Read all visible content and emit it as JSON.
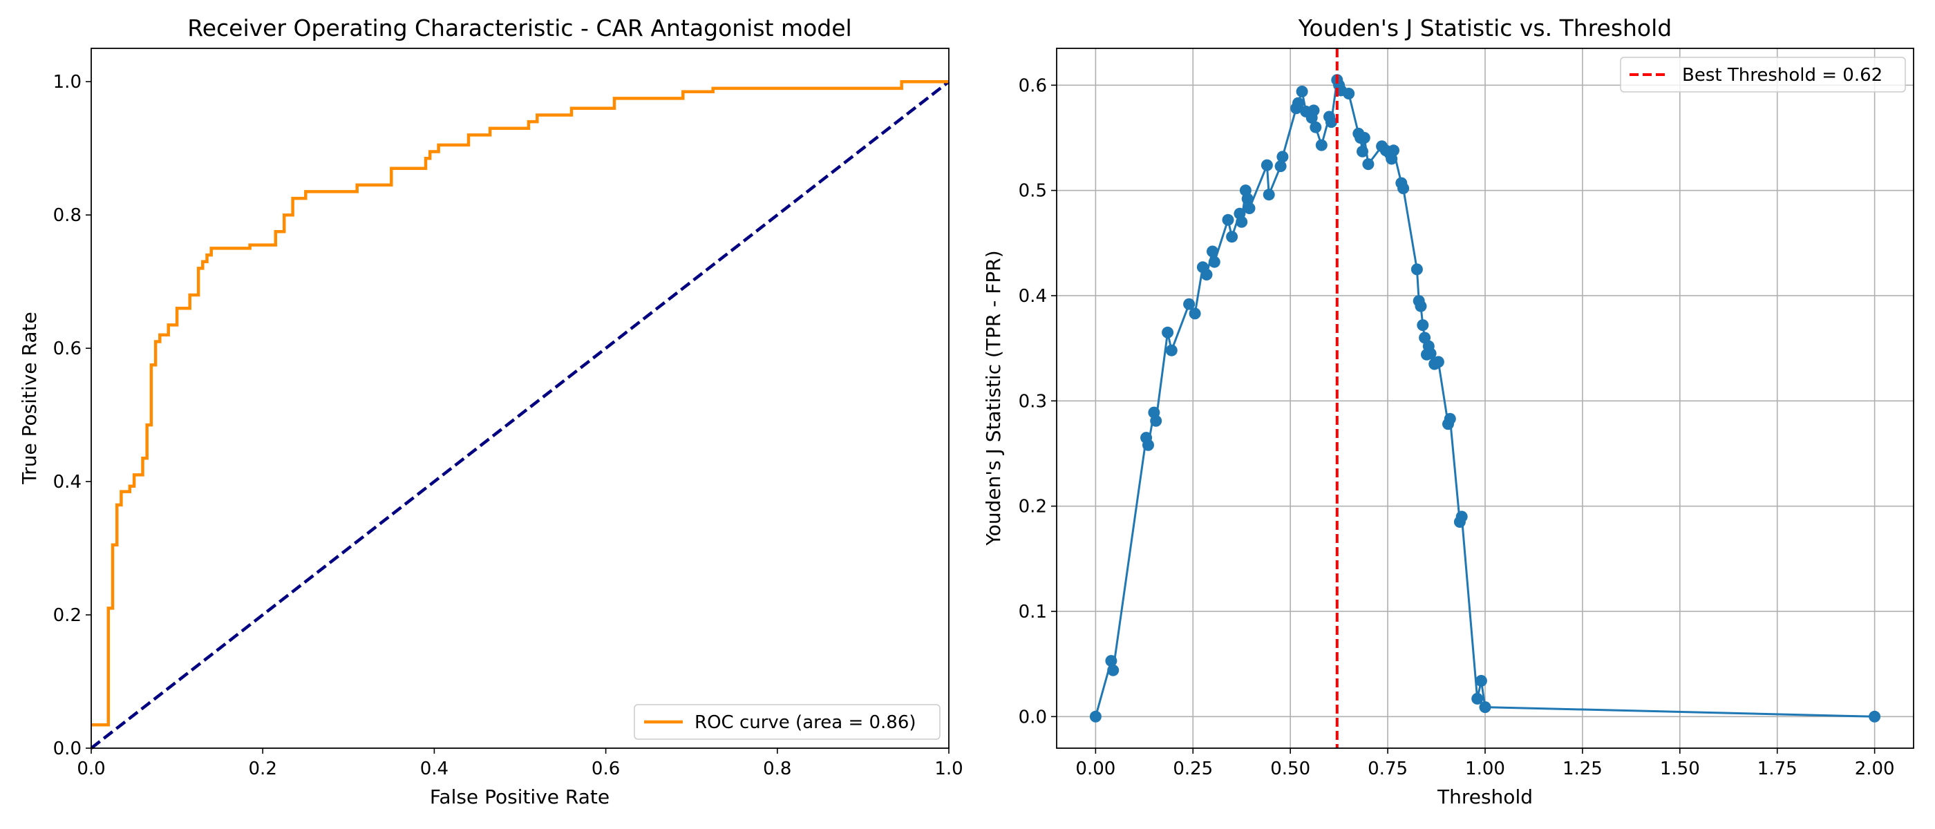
{
  "colors": {
    "roc": "#ff8c00",
    "diagonal": "#000080",
    "youden": "#1f77b4",
    "threshold_line": "#ff0000",
    "grid": "#b0b0b0"
  },
  "chart_data": [
    {
      "type": "line",
      "title": "Receiver Operating Characteristic - CAR Antagonist model",
      "xlabel": "False Positive Rate",
      "ylabel": "True Positive Rate",
      "xlim": [
        0.0,
        1.0
      ],
      "ylim": [
        0.0,
        1.05
      ],
      "xticks": [
        "0.0",
        "0.2",
        "0.4",
        "0.6",
        "0.8",
        "1.0"
      ],
      "yticks": [
        "0.0",
        "0.2",
        "0.4",
        "0.6",
        "0.8",
        "1.0"
      ],
      "grid": false,
      "legend_position": "lower-right",
      "legend": [
        "ROC curve (area = 0.86)"
      ],
      "series": [
        {
          "name": "ROC curve (area = 0.86)",
          "style": "step",
          "x": [
            0.0,
            0.0,
            0.02,
            0.02,
            0.025,
            0.025,
            0.03,
            0.03,
            0.035,
            0.035,
            0.045,
            0.045,
            0.05,
            0.05,
            0.06,
            0.06,
            0.065,
            0.065,
            0.07,
            0.07,
            0.075,
            0.075,
            0.08,
            0.08,
            0.09,
            0.09,
            0.1,
            0.1,
            0.115,
            0.115,
            0.125,
            0.125,
            0.13,
            0.13,
            0.135,
            0.135,
            0.14,
            0.14,
            0.185,
            0.185,
            0.215,
            0.215,
            0.225,
            0.225,
            0.235,
            0.235,
            0.25,
            0.25,
            0.31,
            0.31,
            0.35,
            0.35,
            0.39,
            0.39,
            0.395,
            0.395,
            0.405,
            0.405,
            0.44,
            0.44,
            0.465,
            0.465,
            0.51,
            0.51,
            0.52,
            0.52,
            0.56,
            0.56,
            0.61,
            0.61,
            0.69,
            0.69,
            0.725,
            0.725,
            0.945,
            0.945,
            1.0
          ],
          "y": [
            0.035,
            0.035,
            0.035,
            0.21,
            0.21,
            0.305,
            0.305,
            0.365,
            0.365,
            0.385,
            0.385,
            0.393,
            0.393,
            0.41,
            0.41,
            0.435,
            0.435,
            0.485,
            0.485,
            0.575,
            0.575,
            0.61,
            0.61,
            0.62,
            0.62,
            0.635,
            0.635,
            0.66,
            0.66,
            0.68,
            0.68,
            0.72,
            0.72,
            0.73,
            0.73,
            0.74,
            0.74,
            0.75,
            0.75,
            0.755,
            0.755,
            0.775,
            0.775,
            0.8,
            0.8,
            0.825,
            0.825,
            0.835,
            0.835,
            0.845,
            0.845,
            0.87,
            0.87,
            0.885,
            0.885,
            0.895,
            0.895,
            0.905,
            0.905,
            0.92,
            0.92,
            0.93,
            0.93,
            0.94,
            0.94,
            0.95,
            0.95,
            0.96,
            0.96,
            0.975,
            0.975,
            0.985,
            0.985,
            0.99,
            0.99,
            1.0,
            1.0
          ]
        },
        {
          "name": "",
          "style": "dashed",
          "x": [
            0.0,
            1.0
          ],
          "y": [
            0.0,
            1.0
          ]
        }
      ]
    },
    {
      "type": "line",
      "title": "Youden's J Statistic vs. Threshold",
      "xlabel": "Threshold",
      "ylabel": "Youden's J Statistic (TPR - FPR)",
      "xlim": [
        -0.1,
        2.1
      ],
      "ylim": [
        -0.03,
        0.635
      ],
      "xticks": [
        "0.00",
        "0.25",
        "0.50",
        "0.75",
        "1.00",
        "1.25",
        "1.50",
        "1.75",
        "2.00"
      ],
      "yticks": [
        "0.0",
        "0.1",
        "0.2",
        "0.3",
        "0.4",
        "0.5",
        "0.6"
      ],
      "grid": true,
      "legend_position": "upper-right",
      "legend": [
        "Best Threshold = 0.62"
      ],
      "best_threshold": 0.62,
      "series": [
        {
          "name": "",
          "markers": true,
          "x": [
            2.0,
            1.0,
            0.99,
            0.98,
            0.94,
            0.935,
            0.91,
            0.905,
            0.88,
            0.87,
            0.86,
            0.855,
            0.85,
            0.845,
            0.84,
            0.835,
            0.83,
            0.825,
            0.79,
            0.785,
            0.765,
            0.76,
            0.755,
            0.745,
            0.735,
            0.7,
            0.69,
            0.685,
            0.68,
            0.675,
            0.65,
            0.63,
            0.625,
            0.62,
            0.605,
            0.6,
            0.58,
            0.565,
            0.56,
            0.555,
            0.54,
            0.53,
            0.52,
            0.515,
            0.48,
            0.475,
            0.445,
            0.44,
            0.395,
            0.39,
            0.385,
            0.375,
            0.37,
            0.35,
            0.34,
            0.305,
            0.3,
            0.285,
            0.275,
            0.255,
            0.24,
            0.195,
            0.185,
            0.155,
            0.15,
            0.135,
            0.13,
            0.045,
            0.04,
            0.0
          ],
          "y": [
            0.0,
            0.009,
            0.034,
            0.017,
            0.19,
            0.185,
            0.283,
            0.278,
            0.337,
            0.335,
            0.345,
            0.352,
            0.344,
            0.36,
            0.372,
            0.39,
            0.395,
            0.425,
            0.502,
            0.507,
            0.538,
            0.53,
            0.535,
            0.538,
            0.542,
            0.525,
            0.55,
            0.537,
            0.55,
            0.554,
            0.592,
            0.595,
            0.6,
            0.605,
            0.565,
            0.57,
            0.543,
            0.56,
            0.576,
            0.569,
            0.575,
            0.594,
            0.583,
            0.578,
            0.532,
            0.523,
            0.496,
            0.524,
            0.483,
            0.492,
            0.5,
            0.47,
            0.478,
            0.456,
            0.472,
            0.432,
            0.442,
            0.42,
            0.427,
            0.383,
            0.392,
            0.348,
            0.365,
            0.281,
            0.289,
            0.258,
            0.265,
            0.044,
            0.053,
            0.0
          ]
        }
      ]
    }
  ]
}
